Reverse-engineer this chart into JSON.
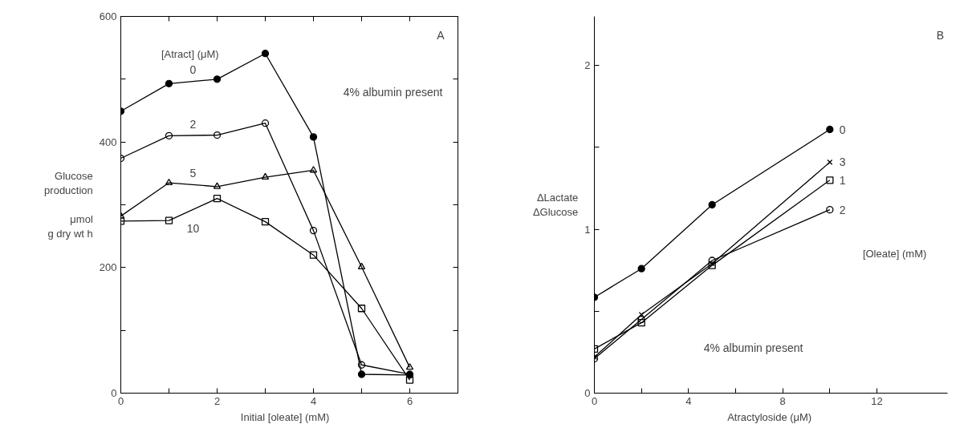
{
  "chart_data": [
    {
      "type": "line",
      "xlabel": "Initial [oleate]    (mM)",
      "ylabel": "Glucose\nproduction\n\nμmol\ng dry wt h",
      "legend_title": "[Atract] (μM)",
      "annotations": [
        "A",
        "4% albumin present"
      ],
      "xlim": [
        0,
        7
      ],
      "ylim": [
        0,
        600
      ],
      "xticks": [
        0,
        {
          "value": 1,
          "label": null
        },
        2,
        {
          "value": 3,
          "label": null
        },
        4,
        {
          "value": 5,
          "label": null
        },
        6
      ],
      "yticks": [
        0,
        {
          "value": 100,
          "label": null
        },
        200,
        {
          "value": 300,
          "label": null
        },
        400,
        {
          "value": 500,
          "label": null
        },
        600
      ],
      "x": [
        0,
        1,
        2,
        3,
        4,
        5,
        6
      ],
      "series": [
        {
          "name": "0",
          "color": "#000000",
          "marker": "circle",
          "values": [
            449,
            493,
            500,
            541,
            408,
            30,
            29
          ]
        },
        {
          "name": "2",
          "color": "#000000",
          "marker": "circle",
          "values": [
            374,
            410,
            411,
            430,
            259,
            45,
            30
          ]
        },
        {
          "name": "5",
          "color": "#000000",
          "marker": "triangle",
          "values": [
            282,
            335,
            329,
            344,
            355,
            201,
            41
          ]
        },
        {
          "name": "10",
          "color": "#000000",
          "marker": "square",
          "values": [
            274,
            275,
            310,
            273,
            220,
            135,
            21
          ]
        }
      ]
    },
    {
      "type": "line",
      "xlabel": "Atractyloside  (μM)",
      "ylabel": "ΔLactate\nΔGlucose",
      "legend_title": "[Oleate]  (mM)",
      "annotations": [
        "B",
        "4% albumin present"
      ],
      "xlim": [
        0,
        15
      ],
      "ylim": [
        0,
        2.3
      ],
      "xticks": [
        0,
        {
          "value": 2,
          "label": null
        },
        4,
        {
          "value": 6,
          "label": null
        },
        8,
        {
          "value": 10,
          "label": null
        },
        12
      ],
      "yticks": [
        0,
        {
          "value": 0.5,
          "label": null
        },
        1,
        {
          "value": 1.5,
          "label": null
        },
        2
      ],
      "x": [
        0,
        2,
        5,
        10
      ],
      "series": [
        {
          "name": "0",
          "color": "#000000",
          "marker": "circle",
          "values": [
            0.585,
            0.76,
            1.15,
            1.61
          ]
        },
        {
          "name": "3",
          "color": "#000000",
          "marker": "cross",
          "values": [
            0.22,
            0.48,
            0.79,
            1.41
          ]
        },
        {
          "name": "1",
          "color": "#000000",
          "marker": "square",
          "values": [
            0.27,
            0.43,
            0.78,
            1.3
          ]
        },
        {
          "name": "2",
          "color": "#000000",
          "marker": "circle",
          "values": [
            0.21,
            0.45,
            0.81,
            1.12
          ]
        }
      ]
    }
  ]
}
